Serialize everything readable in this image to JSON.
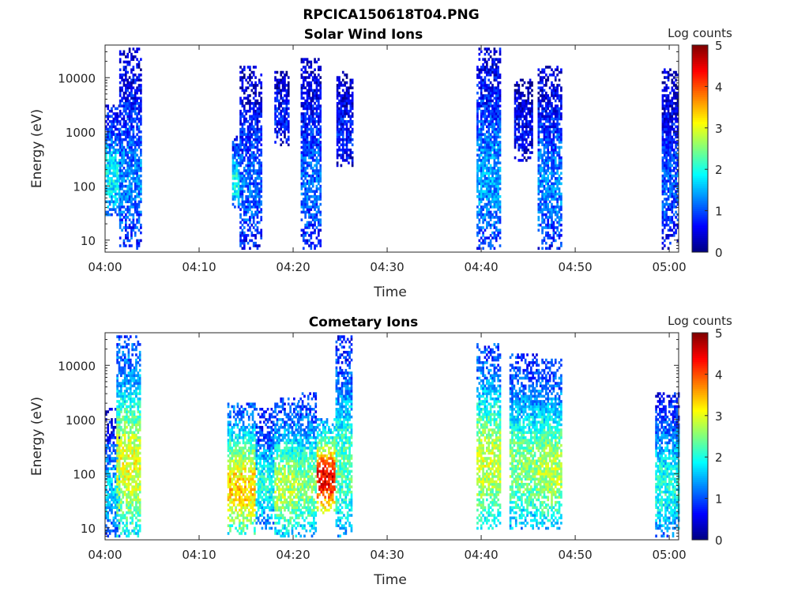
{
  "figure": {
    "title": "RPCICA150618T04.PNG"
  },
  "colormap": {
    "stops": [
      "#00007f",
      "#0000ff",
      "#007fff",
      "#00ffff",
      "#7fff7f",
      "#ffff00",
      "#ff7f00",
      "#ff0000",
      "#7f0000"
    ]
  },
  "chart_data": [
    {
      "type": "heatmap",
      "title": "Solar Wind Ions",
      "xlabel": "Time",
      "ylabel": "Energy (eV)",
      "x_ticks": [
        "04:00",
        "04:10",
        "04:20",
        "04:30",
        "04:40",
        "04:50",
        "05:00"
      ],
      "xlim_minutes": [
        0,
        61
      ],
      "y_scale": "log",
      "y_ticks": [
        "10",
        "100",
        "1000",
        "10000"
      ],
      "ylim": [
        6,
        40000
      ],
      "colorbar": {
        "label": "Log counts",
        "range": [
          0,
          5
        ],
        "ticks": [
          "0",
          "1",
          "2",
          "3",
          "4",
          "5"
        ]
      },
      "bursts": [
        {
          "t_start": 0.0,
          "t_end": 1.5,
          "e_min": 30,
          "e_max": 3000,
          "log_counts": 1.5
        },
        {
          "t_start": 1.5,
          "t_end": 3.8,
          "e_min": 7,
          "e_max": 35000,
          "log_counts": 1.0
        },
        {
          "t_start": 13.5,
          "t_end": 14.3,
          "e_min": 40,
          "e_max": 800,
          "log_counts": 1.6
        },
        {
          "t_start": 14.3,
          "t_end": 16.6,
          "e_min": 7,
          "e_max": 15000,
          "log_counts": 0.9
        },
        {
          "t_start": 18.0,
          "t_end": 19.5,
          "e_min": 600,
          "e_max": 13000,
          "log_counts": 0.6
        },
        {
          "t_start": 20.8,
          "t_end": 23.0,
          "e_min": 7,
          "e_max": 22000,
          "log_counts": 0.9
        },
        {
          "t_start": 24.6,
          "t_end": 26.3,
          "e_min": 250,
          "e_max": 12000,
          "log_counts": 0.6
        },
        {
          "t_start": 39.5,
          "t_end": 42.0,
          "e_min": 7,
          "e_max": 35000,
          "log_counts": 1.1
        },
        {
          "t_start": 43.5,
          "t_end": 45.5,
          "e_min": 300,
          "e_max": 9000,
          "log_counts": 0.5
        },
        {
          "t_start": 46.0,
          "t_end": 48.5,
          "e_min": 7,
          "e_max": 16000,
          "log_counts": 1.0
        },
        {
          "t_start": 59.2,
          "t_end": 61.0,
          "e_min": 7,
          "e_max": 14000,
          "log_counts": 0.8
        }
      ]
    },
    {
      "type": "heatmap",
      "title": "Cometary Ions",
      "xlabel": "Time",
      "ylabel": "Energy (eV)",
      "x_ticks": [
        "04:00",
        "04:10",
        "04:20",
        "04:30",
        "04:40",
        "04:50",
        "05:00"
      ],
      "xlim_minutes": [
        0,
        61
      ],
      "y_scale": "log",
      "y_ticks": [
        "10",
        "100",
        "1000",
        "10000"
      ],
      "ylim": [
        6,
        40000
      ],
      "colorbar": {
        "label": "Log counts",
        "range": [
          0,
          5
        ],
        "ticks": [
          "0",
          "1",
          "2",
          "3",
          "4",
          "5"
        ]
      },
      "bursts": [
        {
          "t_start": 0.0,
          "t_end": 1.6,
          "e_min": 7,
          "e_max": 1500,
          "log_counts": 1.3
        },
        {
          "t_start": 1.2,
          "t_end": 3.8,
          "e_min": 7,
          "e_max": 35000,
          "log_counts": 2.4
        },
        {
          "t_start": 13.0,
          "t_end": 16.0,
          "e_min": 8,
          "e_max": 2000,
          "log_counts": 2.7
        },
        {
          "t_start": 16.0,
          "t_end": 18.0,
          "e_min": 10,
          "e_max": 1500,
          "log_counts": 1.6
        },
        {
          "t_start": 18.0,
          "t_end": 20.5,
          "e_min": 7,
          "e_max": 2500,
          "log_counts": 2.2
        },
        {
          "t_start": 20.5,
          "t_end": 22.5,
          "e_min": 7,
          "e_max": 3000,
          "log_counts": 2.0
        },
        {
          "t_start": 22.5,
          "t_end": 24.5,
          "e_min": 20,
          "e_max": 1000,
          "log_counts": 3.6
        },
        {
          "t_start": 24.5,
          "t_end": 26.3,
          "e_min": 7,
          "e_max": 35000,
          "log_counts": 1.8
        },
        {
          "t_start": 39.5,
          "t_end": 42.0,
          "e_min": 10,
          "e_max": 25000,
          "log_counts": 2.3
        },
        {
          "t_start": 43.0,
          "t_end": 46.0,
          "e_min": 10,
          "e_max": 15000,
          "log_counts": 2.0
        },
        {
          "t_start": 46.0,
          "t_end": 48.6,
          "e_min": 10,
          "e_max": 12000,
          "log_counts": 2.2
        },
        {
          "t_start": 58.5,
          "t_end": 61.0,
          "e_min": 7,
          "e_max": 3000,
          "log_counts": 1.6
        }
      ]
    }
  ]
}
